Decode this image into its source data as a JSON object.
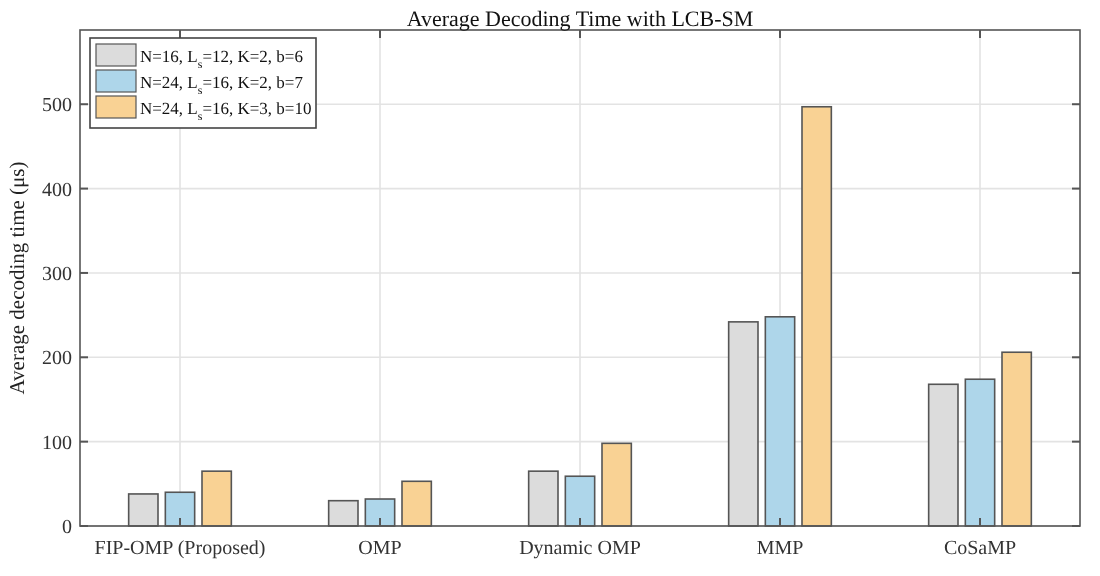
{
  "chart_data": {
    "type": "bar",
    "title": "Average Decoding Time with LCB-SM",
    "ylabel": "Average decoding time (μs)",
    "categories": [
      "FIP-OMP (Proposed)",
      "OMP",
      "Dynamic OMP",
      "MMP",
      "CoSaMP"
    ],
    "series": [
      {
        "name": "N=16, L$_{s}$=12, K=2, b=6",
        "color": "#dcdcdc",
        "values": [
          38,
          30,
          65,
          242,
          168
        ]
      },
      {
        "name": "N=24, L$_{s}$=16, K=2, b=7",
        "color": "#aed6ea",
        "values": [
          40,
          32,
          59,
          248,
          174
        ]
      },
      {
        "name": "N=24, L$_{s}$=16, K=3, b=10",
        "color": "#f9d294",
        "values": [
          65,
          53,
          98,
          497,
          206
        ]
      }
    ],
    "ylim": [
      0,
      588
    ],
    "yticks": [
      0,
      100,
      200,
      300,
      400,
      500
    ],
    "grid": true,
    "legend": "top left"
  }
}
